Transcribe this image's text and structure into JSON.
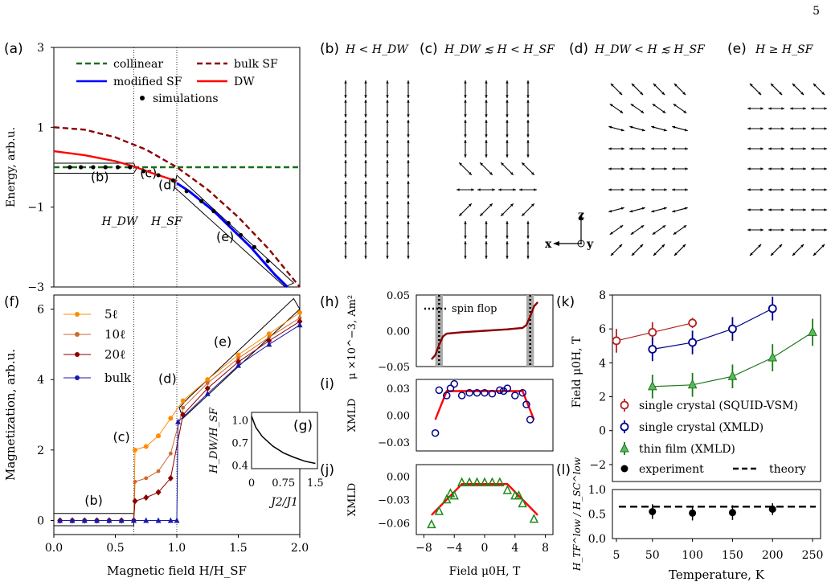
{
  "page_number": "5",
  "panel_labels": {
    "a": "(a)",
    "b": "(b)",
    "c": "(c)",
    "d": "(d)",
    "e": "(e)",
    "f": "(f)",
    "g": "(g)",
    "h": "(h)",
    "i": "(i)",
    "j": "(j)",
    "k": "(k)",
    "l": "(l)"
  },
  "spin_titles": {
    "b": "H < H_DW",
    "c": "H_DW ≲ H < H_SF",
    "d": "H_DW < H ≲ H_SF",
    "e": "H ≥ H_SF"
  },
  "axes_glyph": {
    "z": "z",
    "x": "x",
    "y": "y"
  },
  "chart_data": [
    {
      "id": "a",
      "type": "line",
      "ylabel": "Energy, arb.u.",
      "xlim": [
        0,
        2.0
      ],
      "ylim": [
        -3,
        3
      ],
      "yticks": [
        "3",
        "1",
        "−1",
        "−3"
      ],
      "vlines": [
        {
          "x": 0.65,
          "label": "H_DW"
        },
        {
          "x": 1.0,
          "label": "H_SF"
        }
      ],
      "region_labels": [
        "(b)",
        "(c)",
        "(d)",
        "(e)"
      ],
      "legend": [
        "collinear",
        "bulk SF",
        "modified SF",
        "DW",
        "simulations"
      ],
      "series": [
        {
          "name": "collinear",
          "color": "#1a6e1a",
          "style": "dashed",
          "x": [
            0,
            2
          ],
          "y": [
            0,
            0
          ]
        },
        {
          "name": "bulk SF",
          "color": "#8b0000",
          "style": "dashed",
          "x": [
            0,
            0.25,
            0.5,
            0.75,
            1.0,
            1.25,
            1.5,
            1.75,
            2.0
          ],
          "y": [
            1.0,
            0.94,
            0.75,
            0.44,
            0.0,
            -0.56,
            -1.25,
            -2.06,
            -3.0
          ]
        },
        {
          "name": "DW",
          "color": "#ff0000",
          "style": "solid",
          "x": [
            0,
            0.25,
            0.5,
            0.65,
            0.8,
            1.0
          ],
          "y": [
            0.4,
            0.3,
            0.15,
            0.02,
            -0.15,
            -0.35
          ]
        },
        {
          "name": "modified SF",
          "color": "#0000ff",
          "style": "solid",
          "x": [
            1.0,
            1.1,
            1.2,
            1.3,
            1.4,
            1.5,
            1.6,
            1.7,
            1.8,
            1.9
          ],
          "y": [
            -0.4,
            -0.6,
            -0.85,
            -1.1,
            -1.4,
            -1.7,
            -2.0,
            -2.35,
            -2.7,
            -3.0
          ]
        },
        {
          "name": "simulations",
          "color": "#000000",
          "style": "markers",
          "x": [
            0.13,
            0.22,
            0.32,
            0.42,
            0.52,
            0.62,
            0.73,
            0.85,
            0.97,
            1.08,
            1.2,
            1.3,
            1.42,
            1.52,
            1.63,
            1.74
          ],
          "y": [
            0,
            0,
            0,
            0,
            0,
            0,
            -0.1,
            -0.2,
            -0.33,
            -0.6,
            -0.85,
            -1.1,
            -1.4,
            -1.7,
            -2.0,
            -2.35
          ]
        }
      ]
    },
    {
      "id": "f",
      "type": "line",
      "xlabel": "Magnetic field H/H_SF",
      "ylabel": "Magnetization, arb.u.",
      "xlim": [
        0,
        2.0
      ],
      "ylim": [
        -0.4,
        6.4
      ],
      "xticks": [
        "0.0",
        "0.5",
        "1.0",
        "1.5",
        "2.0"
      ],
      "yticks": [
        "0",
        "2",
        "4",
        "6"
      ],
      "legend": [
        "5ℓ",
        "10ℓ",
        "20ℓ",
        "bulk"
      ],
      "region_labels": [
        "(b)",
        "(c)",
        "(d)",
        "(e)"
      ],
      "series": [
        {
          "name": "5ℓ",
          "color": "#ff8c00",
          "x": [
            0.05,
            0.15,
            0.25,
            0.35,
            0.45,
            0.55,
            0.65,
            0.66,
            0.75,
            0.85,
            0.95,
            1.05,
            1.25,
            1.5,
            1.75,
            2.0
          ],
          "y": [
            0,
            0,
            0,
            0,
            0,
            0,
            0,
            2.0,
            2.1,
            2.4,
            2.9,
            3.4,
            4.0,
            4.7,
            5.3,
            5.9
          ]
        },
        {
          "name": "10ℓ",
          "color": "#cd6a2e",
          "x": [
            0.05,
            0.15,
            0.25,
            0.35,
            0.45,
            0.55,
            0.65,
            0.66,
            0.75,
            0.85,
            0.95,
            1.05,
            1.25,
            1.5,
            1.75,
            2.0
          ],
          "y": [
            0,
            0,
            0,
            0,
            0,
            0,
            0,
            1.1,
            1.2,
            1.4,
            1.9,
            3.2,
            3.9,
            4.6,
            5.2,
            5.75
          ]
        },
        {
          "name": "20ℓ",
          "color": "#8b0000",
          "x": [
            0.05,
            0.15,
            0.25,
            0.35,
            0.45,
            0.55,
            0.65,
            0.66,
            0.75,
            0.85,
            0.95,
            1.05,
            1.25,
            1.5,
            1.75,
            2.0
          ],
          "y": [
            0,
            0,
            0,
            0,
            0,
            0,
            0,
            0.55,
            0.65,
            0.8,
            1.2,
            3.0,
            3.75,
            4.5,
            5.1,
            5.65
          ]
        },
        {
          "name": "bulk",
          "color": "#1a1aaa",
          "x": [
            0.05,
            0.15,
            0.25,
            0.35,
            0.45,
            0.55,
            0.65,
            0.75,
            0.85,
            0.95,
            1.0,
            1.01,
            1.25,
            1.5,
            1.75,
            2.0
          ],
          "y": [
            0,
            0,
            0,
            0,
            0,
            0,
            0,
            0,
            0,
            0,
            0,
            2.8,
            3.6,
            4.4,
            5.0,
            5.55
          ]
        }
      ]
    },
    {
      "id": "g",
      "type": "line",
      "ylabel": "H_DW/H_SF",
      "xlabel": "J2/J1",
      "xticks": [
        "0",
        "0.75",
        "1.5"
      ],
      "yticks": [
        "1.0",
        "0.7",
        "0.4"
      ],
      "series": [
        {
          "name": "",
          "color": "#000000",
          "x": [
            0,
            0.1,
            0.25,
            0.5,
            0.75,
            1.0,
            1.25,
            1.5
          ],
          "y": [
            1.05,
            0.9,
            0.78,
            0.65,
            0.56,
            0.5,
            0.45,
            0.42
          ]
        }
      ]
    },
    {
      "id": "h",
      "type": "line",
      "ylabel": "μ ×10^−3, Am²",
      "ylim": [
        -0.05,
        0.05
      ],
      "yticks": [
        "0.05",
        "0.00",
        "−0.05"
      ],
      "annotation": "spin flop",
      "bands": [
        {
          "x": -6,
          "width": 1
        },
        {
          "x": 6,
          "width": 1
        }
      ],
      "series": [
        {
          "name": "",
          "color": "#8b0000",
          "x": [
            -7,
            -6.5,
            -6,
            -5.5,
            -5,
            -3,
            0,
            3,
            5,
            5.5,
            6,
            6.5,
            7
          ],
          "y": [
            -0.04,
            -0.034,
            -0.02,
            -0.008,
            -0.004,
            -0.002,
            0,
            0.002,
            0.004,
            0.008,
            0.02,
            0.034,
            0.04
          ]
        }
      ]
    },
    {
      "id": "i",
      "type": "scatter",
      "ylabel": "XMLD",
      "ylim": [
        -0.04,
        0.04
      ],
      "yticks": [
        "0.03",
        "0.00",
        "−0.03"
      ],
      "series": [
        {
          "name": "data",
          "color": "#00008b",
          "x": [
            -6.5,
            -6,
            -5,
            -4.5,
            -4,
            -3,
            -2,
            -1,
            0,
            1,
            2,
            2.5,
            3,
            4,
            5,
            5.5,
            6
          ],
          "y": [
            -0.02,
            0.028,
            0.022,
            0.03,
            0.035,
            0.022,
            0.025,
            0.025,
            0.025,
            0.024,
            0.028,
            0.027,
            0.03,
            0.022,
            0.025,
            0.012,
            -0.005
          ]
        },
        {
          "name": "fit",
          "color": "#ff0000",
          "x": [
            -6.5,
            -5,
            5,
            6.5
          ],
          "y": [
            -0.005,
            0.027,
            0.027,
            -0.005
          ]
        }
      ]
    },
    {
      "id": "j",
      "type": "scatter",
      "xlabel": "Field μ0H, T",
      "ylabel": "XMLD",
      "xlim": [
        -9,
        9
      ],
      "xticks": [
        "−8",
        "−4",
        "0",
        "4",
        "8"
      ],
      "ylim": [
        -0.075,
        0.015
      ],
      "yticks": [
        "0.00",
        "−0.03",
        "−0.06"
      ],
      "series": [
        {
          "name": "data",
          "color": "#1a8a1a",
          "x": [
            -7,
            -6,
            -5,
            -4.5,
            -4,
            -3,
            -2,
            -1,
            0,
            1,
            2,
            3,
            4,
            4.5,
            5,
            6.5
          ],
          "y": [
            -0.062,
            -0.045,
            -0.03,
            -0.022,
            -0.025,
            -0.008,
            -0.008,
            -0.008,
            -0.008,
            -0.008,
            -0.008,
            -0.018,
            -0.025,
            -0.025,
            -0.035,
            -0.055
          ]
        },
        {
          "name": "fit",
          "color": "#ff0000",
          "x": [
            -7,
            -3,
            3,
            7
          ],
          "y": [
            -0.05,
            -0.01,
            -0.01,
            -0.05
          ]
        }
      ]
    },
    {
      "id": "k",
      "type": "scatter",
      "ylabel": "Field μ0H, T",
      "xlim": [
        0,
        260
      ],
      "ylim": [
        -3,
        8
      ],
      "yticks": [
        "8",
        "6",
        "4",
        "2",
        "0",
        "−2"
      ],
      "legend": [
        "single crystal (SQUID-VSM)",
        "single crystal (XMLD)",
        "thin film (XMLD)",
        "experiment",
        "theory"
      ],
      "series": [
        {
          "name": "single crystal (SQUID-VSM)",
          "color": "#b22222",
          "marker": "circle",
          "x": [
            5,
            50,
            100
          ],
          "y": [
            5.3,
            5.8,
            6.35
          ],
          "err": [
            0.7,
            0.6,
            0.3
          ]
        },
        {
          "name": "single crystal (XMLD)",
          "color": "#00008b",
          "marker": "circle",
          "x": [
            50,
            100,
            150,
            200
          ],
          "y": [
            4.8,
            5.2,
            6.0,
            7.2
          ],
          "err": [
            0.7,
            0.7,
            0.7,
            0.7
          ]
        },
        {
          "name": "thin film (XMLD)",
          "color": "#1a7a1a",
          "marker": "triangle",
          "x": [
            50,
            100,
            150,
            200,
            250
          ],
          "y": [
            2.6,
            2.7,
            3.2,
            4.3,
            5.8
          ],
          "err": [
            0.7,
            0.7,
            0.7,
            0.8,
            0.8
          ]
        }
      ]
    },
    {
      "id": "l",
      "type": "scatter",
      "xlabel": "Temperature, K",
      "ylabel": "H_TF^low / H_SC^low",
      "xlim": [
        0,
        260
      ],
      "xticks": [
        "5",
        "50",
        "100",
        "150",
        "200",
        "250"
      ],
      "ylim": [
        0,
        1.0
      ],
      "yticks": [
        "1.0",
        "0.5",
        "0.0"
      ],
      "theory": 0.65,
      "series": [
        {
          "name": "experiment",
          "color": "#000000",
          "x": [
            50,
            100,
            150,
            200
          ],
          "y": [
            0.55,
            0.52,
            0.53,
            0.6
          ],
          "err": [
            0.15,
            0.15,
            0.15,
            0.12
          ]
        }
      ]
    }
  ]
}
